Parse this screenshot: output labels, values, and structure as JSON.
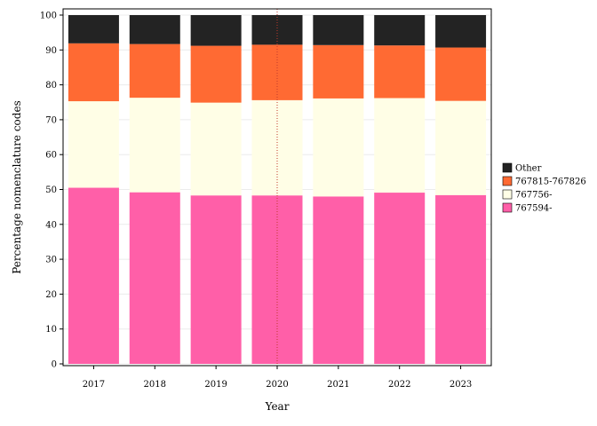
{
  "chart_data": {
    "type": "bar",
    "stacked": true,
    "categories": [
      "2017",
      "2018",
      "2019",
      "2020",
      "2021",
      "2022",
      "2023"
    ],
    "series": [
      {
        "name": "767594-",
        "color": "#ff5fa8",
        "values": [
          50.5,
          49.2,
          48.3,
          48.3,
          48.0,
          49.1,
          48.4
        ]
      },
      {
        "name": "767756-",
        "color": "#fffee6",
        "values": [
          24.8,
          27.1,
          26.6,
          27.3,
          28.1,
          27.1,
          27.0
        ]
      },
      {
        "name": "767815-767826",
        "color": "#ff6a33",
        "values": [
          16.6,
          15.4,
          16.3,
          15.9,
          15.3,
          15.1,
          15.3
        ]
      },
      {
        "name": "Other",
        "color": "#232323",
        "values": [
          8.1,
          8.3,
          8.8,
          8.5,
          8.6,
          8.7,
          9.3
        ]
      }
    ],
    "legend_order": [
      "Other",
      "767815-767826",
      "767756-",
      "767594-"
    ],
    "xlabel": "Year",
    "ylabel": "Percentage nomenclature codes",
    "ylim": [
      0,
      100
    ],
    "yticks": [
      0,
      10,
      20,
      30,
      40,
      50,
      60,
      70,
      80,
      90,
      100
    ],
    "grid": true,
    "legend_position": "right",
    "reference_line": {
      "x": "2020",
      "color": "#c0392b",
      "style": "dotted"
    }
  }
}
